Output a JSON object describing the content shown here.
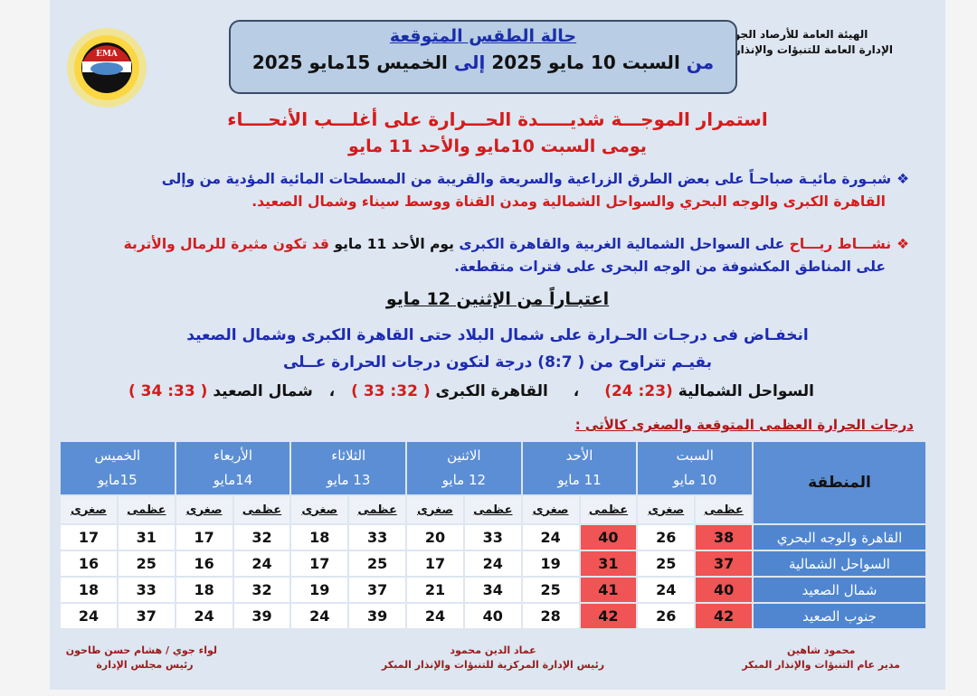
{
  "org": {
    "line1": "الهيئة العامة للأرصاد الجوية",
    "line2": "الإدارة العامة للتنبؤات والإنذار المبكر"
  },
  "logo_text": "EMA",
  "title": "حالة الطقس المتوقعة",
  "period": {
    "from": "من",
    "from_date": "السبت 10 مايو 2025",
    "to": "إلى",
    "to_date": "الخميس 15مايو 2025"
  },
  "headline1": "استمرار الموجـــة شديـــــدة الحـــرارة على أغلـــب الأنحــــاء",
  "headline2": "يومى السبت 10مايو والأحد 11 مايو",
  "bullet1": {
    "blue": "شبـورة مائيـة صباحـاً على بعض الطرق الزراعية والسريعة والقريبة من المسطحات المائية المؤدية من وإلى",
    "red": "القاهرة الكبرى والوجه البحري والسواحل الشمالية ومدن القناة ووسط سيناء وشمال الصعيد."
  },
  "bullet2": {
    "red1": "نشـــاط ريـــاح",
    "blue1": "على السواحل الشمالية الغربية والقاهرة الكبرى",
    "black": "يوم الأحد 11 مايو",
    "red2": "قد تكون مثيرة للرمال والأتربة",
    "blue2": "على المناطق المكشوفة من الوجه البحرى على فترات متقطعة."
  },
  "subheading": "اعتبـاراً من الإثنين  12 مايو",
  "line1": "انخفـاض فى درجـات الحـرارة على شمال البلاد حتى القاهرة الكبرى وشمال الصعيد",
  "line2": "بقيـم تتراوح من ( 8:7) درجة لتكون درجات الحرارة عــلى",
  "ranges": [
    {
      "label": "السواحل الشمالية",
      "value": "(23: 24)"
    },
    {
      "label": "القاهرة الكبرى",
      "value": "( 32: 33 )"
    },
    {
      "label": "شمال الصعيد",
      "value": "( 33: 34 )"
    }
  ],
  "separator": "،",
  "table_title": "درجات الحرارة العظمى المتوقعة والصغرى كالأتى :",
  "table": {
    "region_header": "المنطقة",
    "max_label": "عظمى",
    "min_label": "صغرى",
    "days": [
      {
        "name": "السبت",
        "date": "10 مايو"
      },
      {
        "name": "الأحد",
        "date": "11 مايو"
      },
      {
        "name": "الاثنين",
        "date": "12 مايو"
      },
      {
        "name": "الثلاثاء",
        "date": "13 مايو"
      },
      {
        "name": "الأربعاء",
        "date": "14مايو"
      },
      {
        "name": "الخميس",
        "date": "15مايو"
      }
    ],
    "rows": [
      {
        "region": "القاهرة والوجه البحري",
        "values": [
          [
            38,
            26
          ],
          [
            40,
            24
          ],
          [
            33,
            20
          ],
          [
            33,
            18
          ],
          [
            32,
            17
          ],
          [
            31,
            17
          ]
        ]
      },
      {
        "region": "السواحل الشمالية",
        "values": [
          [
            37,
            25
          ],
          [
            31,
            19
          ],
          [
            24,
            17
          ],
          [
            25,
            17
          ],
          [
            24,
            16
          ],
          [
            25,
            16
          ]
        ]
      },
      {
        "region": "شمال الصعيد",
        "values": [
          [
            40,
            24
          ],
          [
            41,
            25
          ],
          [
            34,
            21
          ],
          [
            37,
            19
          ],
          [
            32,
            18
          ],
          [
            33,
            18
          ]
        ]
      },
      {
        "region": "جنوب الصعيد",
        "values": [
          [
            42,
            26
          ],
          [
            42,
            28
          ],
          [
            40,
            24
          ],
          [
            39,
            24
          ],
          [
            39,
            24
          ],
          [
            37,
            24
          ]
        ]
      }
    ],
    "highlighted_days": [
      0,
      1
    ],
    "highlight_color": "#f05454"
  },
  "signatures": [
    {
      "name": "محمود شاهين",
      "title": "مدير عام التنبؤات والإنذار المبكر"
    },
    {
      "name": "عماد الدين محمود",
      "title": "رئيس الإدارة المركزية للتنبؤات والإنذار المبكر"
    },
    {
      "name": "لواء جوي / هشام حسن طاحون",
      "title": "رئيس مجلس الإدارة"
    }
  ]
}
